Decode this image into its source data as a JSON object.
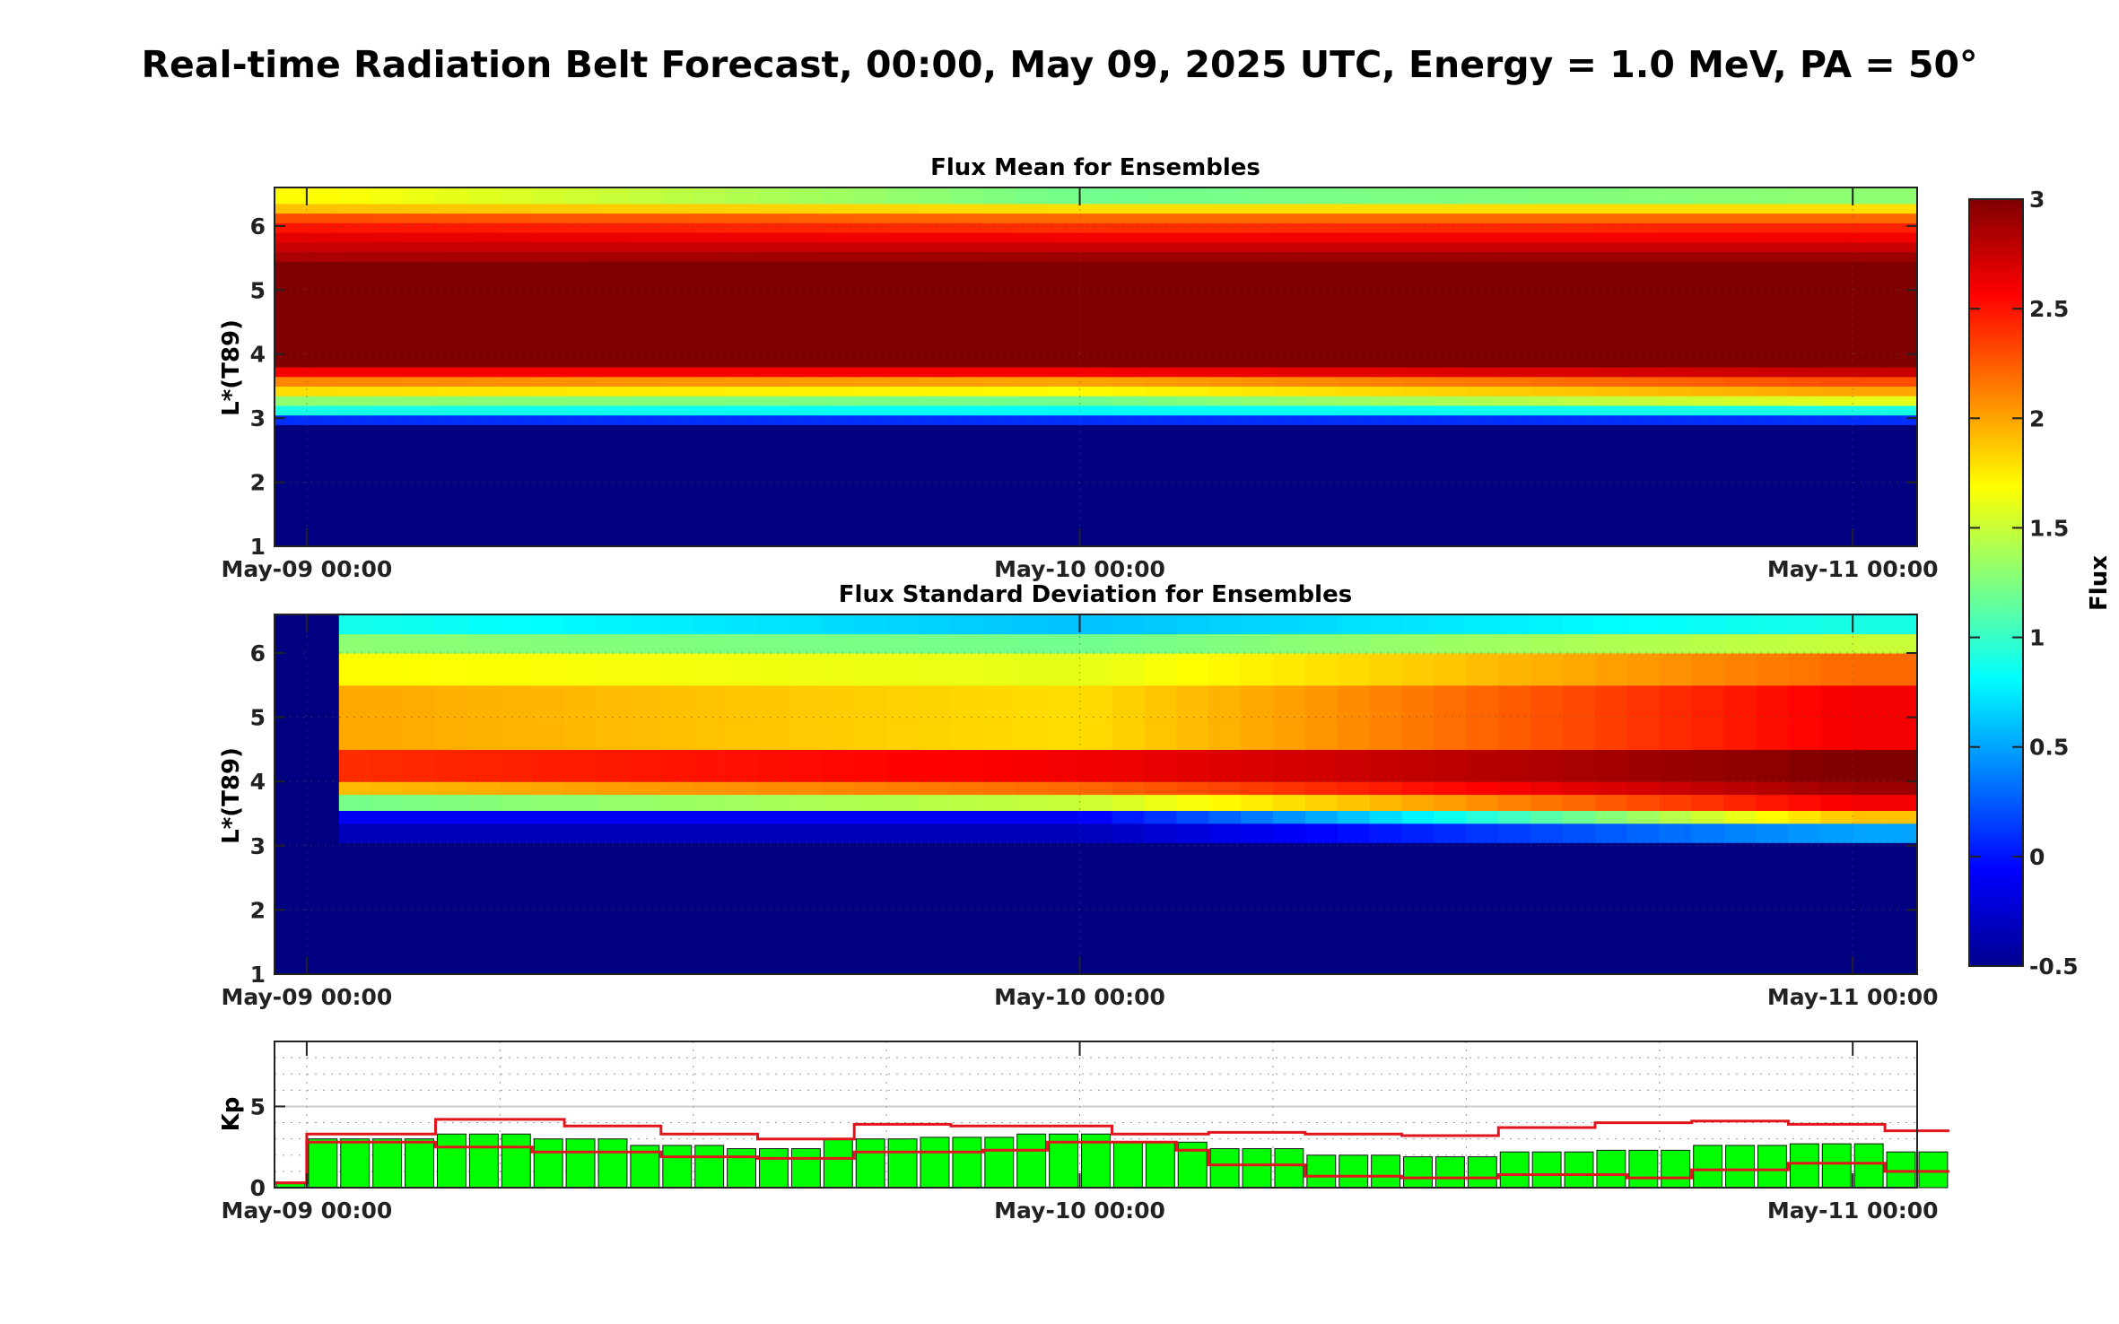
{
  "figure": {
    "title": "Real-time Radiation Belt Forecast,  00:00, May 09, 2025 UTC, Energy = 1.0 MeV, PA = 50°"
  },
  "colorbar": {
    "label": "Flux",
    "ticks": [
      "3",
      "2.5",
      "2",
      "1.5",
      "1",
      "0.5",
      "0",
      "-0.5"
    ],
    "range": [
      -0.5,
      3
    ],
    "colormap": "jet"
  },
  "chart_data": [
    {
      "type": "heatmap",
      "title": "Flux Mean for Ensembles",
      "ylabel": "L*(T89)",
      "yticks": [
        "1",
        "2",
        "3",
        "4",
        "5",
        "6"
      ],
      "xticks": [
        "May-09 00:00",
        "May-10 00:00",
        "May-11 00:00"
      ],
      "ylim": [
        1,
        6.6
      ],
      "x_start_hours": -1,
      "x_end_hours": 50,
      "time_step_hours": 1,
      "l_bins": [
        1.0,
        2.9,
        3.05,
        3.2,
        3.35,
        3.5,
        3.65,
        3.8,
        3.95,
        4.1,
        4.25,
        4.4,
        4.55,
        4.7,
        4.85,
        5.0,
        5.15,
        5.3,
        5.45,
        5.6,
        5.75,
        5.9,
        6.05,
        6.2,
        6.35,
        6.6
      ],
      "l_rows": [
        {
          "L": "1.0-2.9",
          "values": [
            -0.5,
            -0.5,
            -0.5
          ]
        },
        {
          "L": "2.9-3.05",
          "values": [
            0.1,
            0.1,
            0.1
          ]
        },
        {
          "L": "3.05-3.2",
          "values": [
            0.9,
            0.8,
            0.9
          ]
        },
        {
          "L": "3.2-3.35",
          "values": [
            1.3,
            1.2,
            1.6
          ]
        },
        {
          "L": "3.35-3.5",
          "values": [
            1.8,
            1.7,
            2.0
          ]
        },
        {
          "L": "3.5-3.65",
          "values": [
            2.1,
            2.0,
            2.3
          ]
        },
        {
          "L": "3.65-3.8",
          "values": [
            2.6,
            2.6,
            2.75
          ]
        },
        {
          "L": "3.8-5.45",
          "values": [
            3.0,
            3.0,
            3.0
          ]
        },
        {
          "L": "5.45-5.6",
          "values": [
            2.85,
            2.9,
            2.9
          ]
        },
        {
          "L": "5.6-5.75",
          "values": [
            2.75,
            2.75,
            2.75
          ]
        },
        {
          "L": "5.75-5.9",
          "values": [
            2.65,
            2.6,
            2.6
          ]
        },
        {
          "L": "5.9-6.05",
          "values": [
            2.5,
            2.4,
            2.45
          ]
        },
        {
          "L": "6.05-6.2",
          "values": [
            2.3,
            2.2,
            2.2
          ]
        },
        {
          "L": "6.2-6.35",
          "values": [
            1.9,
            1.8,
            1.8
          ]
        },
        {
          "L": "6.35-6.6",
          "values": [
            1.7,
            1.2,
            1.3
          ]
        }
      ]
    },
    {
      "type": "heatmap",
      "title": "Flux Standard Deviation for Ensembles",
      "ylabel": "L*(T89)",
      "yticks": [
        "1",
        "2",
        "3",
        "4",
        "5",
        "6"
      ],
      "xticks": [
        "May-09 00:00",
        "May-10 00:00",
        "May-11 00:00"
      ],
      "ylim": [
        1,
        6.6
      ],
      "x_start_hours": -1,
      "x_end_hours": 50,
      "blank_until_hours": 1,
      "l_rows": [
        {
          "L": "1.0-3.05",
          "values": [
            -0.5,
            -0.5,
            -0.5
          ]
        },
        {
          "L": "3.05-3.35",
          "values": [
            -0.3,
            -0.3,
            0.5
          ]
        },
        {
          "L": "3.35-3.55",
          "values": [
            -0.1,
            -0.1,
            1.9
          ]
        },
        {
          "L": "3.55-3.8",
          "values": [
            1.2,
            1.5,
            2.6
          ]
        },
        {
          "L": "3.8-4.0",
          "values": [
            1.9,
            2.2,
            2.9
          ]
        },
        {
          "L": "4.0-4.5",
          "values": [
            2.4,
            2.6,
            3.0
          ]
        },
        {
          "L": "4.5-5.5",
          "values": [
            2.0,
            1.8,
            2.6
          ]
        },
        {
          "L": "5.5-6.0",
          "values": [
            1.7,
            1.6,
            2.2
          ]
        },
        {
          "L": "6.0-6.3",
          "values": [
            1.3,
            1.2,
            1.5
          ]
        },
        {
          "L": "6.3-6.6",
          "values": [
            0.9,
            0.6,
            0.9
          ]
        }
      ]
    },
    {
      "type": "bar",
      "title": "",
      "ylabel": "Kp",
      "yticks": [
        "0",
        "5"
      ],
      "xticks": [
        "May-09 00:00",
        "May-10 00:00",
        "May-11 00:00"
      ],
      "ylim": [
        0,
        9
      ],
      "bar_width_hours": 1,
      "bars": [
        0.3,
        3.0,
        3.0,
        3.0,
        3.0,
        3.3,
        3.3,
        3.3,
        3.0,
        3.0,
        3.0,
        2.6,
        2.6,
        2.6,
        2.4,
        2.4,
        2.4,
        3.0,
        3.0,
        3.0,
        3.1,
        3.1,
        3.1,
        3.3,
        3.3,
        3.3,
        2.8,
        2.8,
        2.8,
        2.4,
        2.4,
        2.4,
        2.0,
        2.0,
        2.0,
        1.9,
        1.9,
        1.9,
        2.2,
        2.2,
        2.2,
        2.3,
        2.3,
        2.3,
        2.6,
        2.6,
        2.6,
        2.7,
        2.7,
        2.7,
        2.2,
        2.2
      ],
      "upper_line": [
        [
          -1,
          0.3
        ],
        [
          0,
          3.3
        ],
        [
          3,
          3.3
        ],
        [
          4,
          4.2
        ],
        [
          7,
          4.2
        ],
        [
          8,
          3.8
        ],
        [
          10,
          3.8
        ],
        [
          11,
          3.3
        ],
        [
          13,
          3.3
        ],
        [
          14,
          3.0
        ],
        [
          16,
          3.0
        ],
        [
          17,
          3.9
        ],
        [
          20,
          3.8
        ],
        [
          24,
          3.8
        ],
        [
          25,
          3.3
        ],
        [
          28,
          3.4
        ],
        [
          31,
          3.3
        ],
        [
          34,
          3.2
        ],
        [
          37,
          3.7
        ],
        [
          40,
          4.0
        ],
        [
          43,
          4.1
        ],
        [
          46,
          4.1
        ],
        [
          46,
          3.9
        ],
        [
          49,
          3.9
        ],
        [
          49,
          3.5
        ],
        [
          51,
          3.5
        ]
      ],
      "lower_line": [
        [
          -1,
          0.3
        ],
        [
          0,
          2.8
        ],
        [
          3,
          2.8
        ],
        [
          4,
          2.5
        ],
        [
          7,
          2.5
        ],
        [
          7,
          2.2
        ],
        [
          10,
          2.2
        ],
        [
          11,
          1.9
        ],
        [
          14,
          1.8
        ],
        [
          16,
          1.8
        ],
        [
          17,
          2.2
        ],
        [
          21,
          2.3
        ],
        [
          23,
          2.3
        ],
        [
          23,
          2.8
        ],
        [
          27,
          2.8
        ],
        [
          27,
          2.3
        ],
        [
          28,
          2.3
        ],
        [
          28,
          1.4
        ],
        [
          31,
          1.4
        ],
        [
          31,
          0.7
        ],
        [
          34,
          0.7
        ],
        [
          34,
          0.6
        ],
        [
          37,
          0.6
        ],
        [
          37,
          0.8
        ],
        [
          40,
          0.8
        ],
        [
          41,
          0.6
        ],
        [
          43,
          0.6
        ],
        [
          43,
          1.1
        ],
        [
          46,
          1.1
        ],
        [
          46,
          1.5
        ],
        [
          49,
          1.5
        ],
        [
          49,
          1.0
        ],
        [
          51,
          1.0
        ]
      ]
    }
  ]
}
